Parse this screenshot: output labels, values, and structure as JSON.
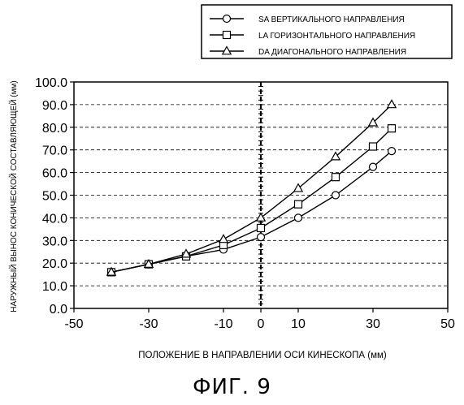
{
  "figure_caption": "ФИГ. 9",
  "chart_data": {
    "type": "line",
    "xlabel": "ПОЛОЖЕНИЕ В НАПРАВЛЕНИИ ОСИ КИНЕСКОПА (мм)",
    "ylabel": "НАРУЖНЫЙ ВЫНОС КОНИЧЕСКОЙ СОСТАВЛЯЮЩЕЙ (мм)",
    "xlim": [
      -50,
      50
    ],
    "ylim": [
      0,
      100
    ],
    "x_ticks": [
      -50,
      -30,
      -10,
      0,
      10,
      30,
      50
    ],
    "y_ticks": [
      0,
      10,
      20,
      30,
      40,
      50,
      60,
      70,
      80,
      90,
      100
    ],
    "x_tick_labels": [
      "-50",
      "-30",
      "-10",
      "0",
      "10",
      "30",
      "50"
    ],
    "y_tick_labels": [
      "0.0",
      "10.0",
      "20.0",
      "30.0",
      "40.0",
      "50.0",
      "60.0",
      "70.0",
      "80.0",
      "90.0",
      "100.0"
    ],
    "grid": "horizontal dashed",
    "zero_line": "vertical bold dashed at x = 0",
    "legend_position": "top-right, above plot",
    "series": [
      {
        "name": "SA ВЕРТИКАЛЬНОГО НАПРАВЛЕНИЯ",
        "marker": "circle",
        "x": [
          -40,
          -30,
          -20,
          -10,
          0,
          10,
          20,
          30,
          35
        ],
        "y": [
          16,
          19.5,
          23,
          26,
          31.5,
          40,
          50,
          62.5,
          69.5
        ]
      },
      {
        "name": "LA ГОРИЗОНТАЛЬНОГО НАПРАВЛЕНИЯ",
        "marker": "square",
        "x": [
          -40,
          -30,
          -20,
          -10,
          0,
          10,
          20,
          30,
          35
        ],
        "y": [
          16,
          19.5,
          23,
          28,
          35.5,
          46,
          58,
          71.5,
          79.5
        ]
      },
      {
        "name": "DA ДИАГОНАЛЬНОГО НАПРАВЛЕНИЯ",
        "marker": "triangle",
        "x": [
          -40,
          -30,
          -20,
          -10,
          0,
          10,
          20,
          30,
          35
        ],
        "y": [
          16,
          19.5,
          24,
          30.5,
          40,
          53,
          67,
          82,
          90
        ]
      }
    ]
  }
}
